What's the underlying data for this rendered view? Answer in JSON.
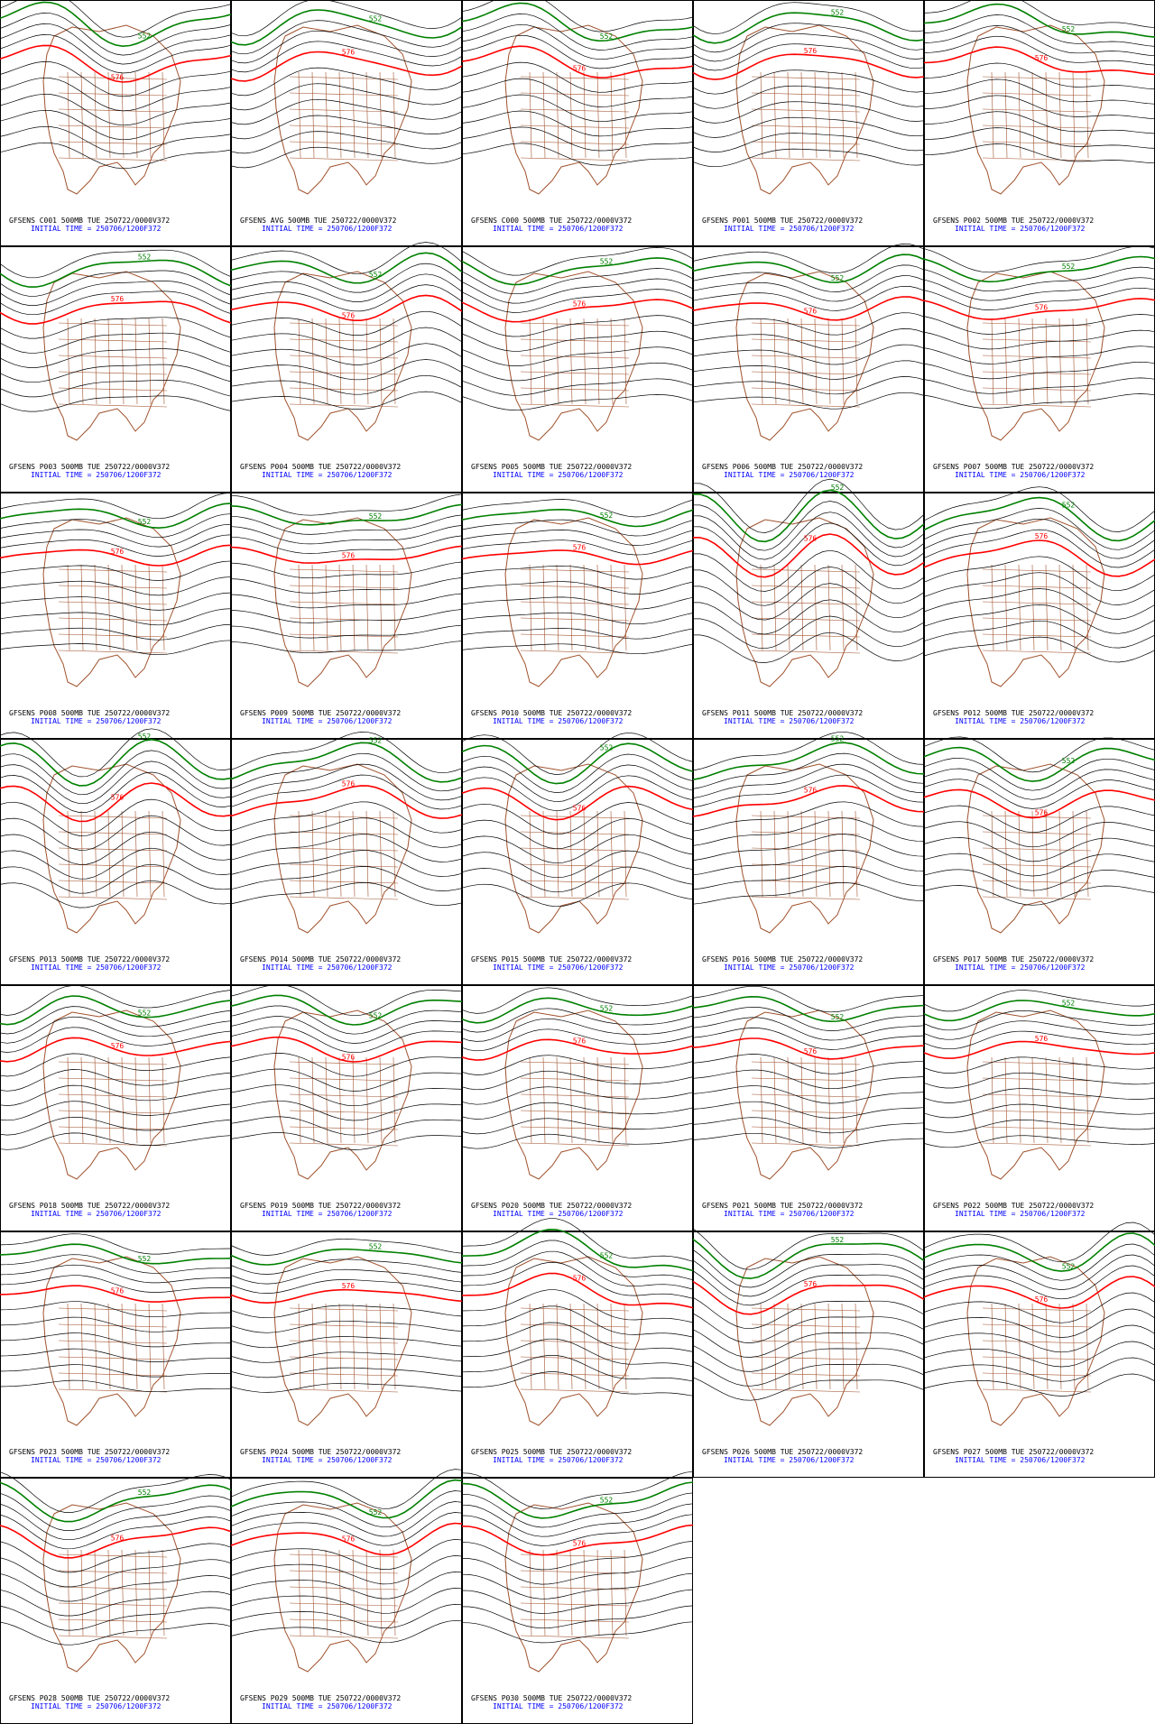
{
  "panels": [
    {
      "title": "GFSENS C001 500MB TUE 250722/0000V372",
      "initial": "INITIAL TIME = 250706/1200F372",
      "labels": [
        "576",
        "552"
      ]
    },
    {
      "title": "GFSENS AVG 500MB TUE 250722/0000V372",
      "initial": "INITIAL TIME = 250706/1200F372",
      "labels": [
        "576",
        "552"
      ]
    },
    {
      "title": "GFSENS C000 500MB TUE 250722/0000V372",
      "initial": "INITIAL TIME = 250706/1200F372",
      "labels": [
        "576",
        "552"
      ]
    },
    {
      "title": "GFSENS P001 500MB TUE 250722/0000V372",
      "initial": "INITIAL TIME = 250706/1200F372",
      "labels": [
        "576",
        "552"
      ]
    },
    {
      "title": "GFSENS P002 500MB TUE 250722/0000V372",
      "initial": "INITIAL TIME = 250706/1200F372",
      "labels": [
        "576",
        "552"
      ]
    },
    {
      "title": "GFSENS P003 500MB TUE 250722/0000V372",
      "initial": "INITIAL TIME = 250706/1200F372",
      "labels": [
        "576",
        "552"
      ]
    },
    {
      "title": "GFSENS P004 500MB TUE 250722/0000V372",
      "initial": "INITIAL TIME = 250706/1200F372",
      "labels": [
        "576",
        "552"
      ]
    },
    {
      "title": "GFSENS P005 500MB TUE 250722/0000V372",
      "initial": "INITIAL TIME = 250706/1200F372",
      "labels": [
        "576",
        "552"
      ]
    },
    {
      "title": "GFSENS P006 500MB TUE 250722/0000V372",
      "initial": "INITIAL TIME = 250706/1200F372",
      "labels": [
        "576",
        "552"
      ]
    },
    {
      "title": "GFSENS P007 500MB TUE 250722/0000V372",
      "initial": "INITIAL TIME = 250706/1200F372",
      "labels": [
        "576",
        "552"
      ]
    },
    {
      "title": "GFSENS P008 500MB TUE 250722/0000V372",
      "initial": "INITIAL TIME = 250706/1200F372",
      "labels": [
        "576",
        "552"
      ]
    },
    {
      "title": "GFSENS P009 500MB TUE 250722/0000V372",
      "initial": "INITIAL TIME = 250706/1200F372",
      "labels": [
        "576",
        "552"
      ]
    },
    {
      "title": "GFSENS P010 500MB TUE 250722/0000V372",
      "initial": "INITIAL TIME = 250706/1200F372",
      "labels": [
        "576",
        "552"
      ]
    },
    {
      "title": "GFSENS P011 500MB TUE 250722/0000V372",
      "initial": "INITIAL TIME = 250706/1200F372",
      "labels": [
        "576",
        "552"
      ]
    },
    {
      "title": "GFSENS P012 500MB TUE 250722/0000V372",
      "initial": "INITIAL TIME = 250706/1200F372",
      "labels": [
        "576",
        "552"
      ]
    },
    {
      "title": "GFSENS P013 500MB TUE 250722/0000V372",
      "initial": "INITIAL TIME = 250706/1200F372",
      "labels": [
        "576",
        "552"
      ]
    },
    {
      "title": "GFSENS P014 500MB TUE 250722/0000V372",
      "initial": "INITIAL TIME = 250706/1200F372",
      "labels": [
        "576",
        "552"
      ]
    },
    {
      "title": "GFSENS P015 500MB TUE 250722/0000V372",
      "initial": "INITIAL TIME = 250706/1200F372",
      "labels": [
        "576",
        "552"
      ]
    },
    {
      "title": "GFSENS P016 500MB TUE 250722/0000V372",
      "initial": "INITIAL TIME = 250706/1200F372",
      "labels": [
        "576",
        "552"
      ]
    },
    {
      "title": "GFSENS P017 500MB TUE 250722/0000V372",
      "initial": "INITIAL TIME = 250706/1200F372",
      "labels": [
        "576",
        "552"
      ]
    },
    {
      "title": "GFSENS P018 500MB TUE 250722/0000V372",
      "initial": "INITIAL TIME = 250706/1200F372",
      "labels": [
        "576",
        "552"
      ]
    },
    {
      "title": "GFSENS P019 500MB TUE 250722/0000V372",
      "initial": "INITIAL TIME = 250706/1200F372",
      "labels": [
        "576",
        "552"
      ]
    },
    {
      "title": "GFSENS P020 500MB TUE 250722/0000V372",
      "initial": "INITIAL TIME = 250706/1200F372",
      "labels": [
        "576",
        "552"
      ]
    },
    {
      "title": "GFSENS P021 500MB TUE 250722/0000V372",
      "initial": "INITIAL TIME = 250706/1200F372",
      "labels": [
        "576",
        "552"
      ]
    },
    {
      "title": "GFSENS P022 500MB TUE 250722/0000V372",
      "initial": "INITIAL TIME = 250706/1200F372",
      "labels": [
        "576",
        "552"
      ]
    },
    {
      "title": "GFSENS P023 500MB TUE 250722/0000V372",
      "initial": "INITIAL TIME = 250706/1200F372",
      "labels": [
        "576",
        "552"
      ]
    },
    {
      "title": "GFSENS P024 500MB TUE 250722/0000V372",
      "initial": "INITIAL TIME = 250706/1200F372",
      "labels": [
        "576",
        "552"
      ]
    },
    {
      "title": "GFSENS P025 500MB TUE 250722/0000V372",
      "initial": "INITIAL TIME = 250706/1200F372",
      "labels": [
        "576",
        "552"
      ]
    },
    {
      "title": "GFSENS P026 500MB TUE 250722/0000V372",
      "initial": "INITIAL TIME = 250706/1200F372",
      "labels": [
        "576",
        "552"
      ]
    },
    {
      "title": "GFSENS P027 500MB TUE 250722/0000V372",
      "initial": "INITIAL TIME = 250706/1200F372",
      "labels": [
        "576",
        "552"
      ]
    },
    {
      "title": "GFSENS P028 500MB TUE 250722/0000V372",
      "initial": "INITIAL TIME = 250706/1200F372",
      "labels": [
        "576",
        "552"
      ]
    },
    {
      "title": "GFSENS P029 500MB TUE 250722/0000V372",
      "initial": "INITIAL TIME = 250706/1200F372",
      "labels": [
        "576",
        "552"
      ]
    },
    {
      "title": "GFSENS P030 500MB TUE 250722/0000V372",
      "initial": "INITIAL TIME = 250706/1200F372",
      "labels": [
        "576",
        "552"
      ]
    }
  ]
}
